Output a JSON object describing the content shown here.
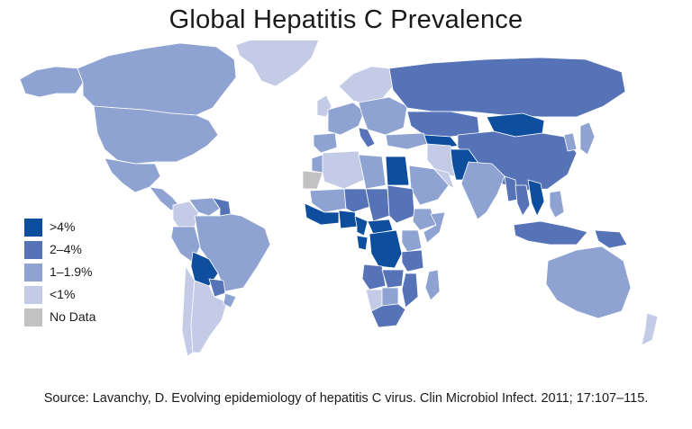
{
  "title": "Global Hepatitis C Prevalence",
  "source": "Source: Lavanchy, D. Evolving epidemiology of hepatitis C virus. Clin Microbiol Infect. 2011; 17:107–115.",
  "colors": {
    "gt4": "#0d4f9e",
    "2to4": "#5773b8",
    "1to19": "#8fa3d3",
    "lt1": "#c3cbe7",
    "nodata": "#c2c2c2",
    "border": "#ffffff"
  },
  "legend": [
    {
      "key": "gt4",
      "label": ">4%"
    },
    {
      "key": "2to4",
      "label": "2–4%"
    },
    {
      "key": "1to19",
      "label": "1–1.9%"
    },
    {
      "key": "lt1",
      "label": "<1%"
    },
    {
      "key": "nodata",
      "label": "No Data"
    }
  ],
  "map_data": {
    "regions": [
      {
        "name": "Canada",
        "category": "1to19"
      },
      {
        "name": "United States",
        "category": "1to19"
      },
      {
        "name": "Alaska",
        "category": "1to19"
      },
      {
        "name": "Greenland",
        "category": "lt1"
      },
      {
        "name": "Mexico",
        "category": "1to19"
      },
      {
        "name": "Central America",
        "category": "1to19"
      },
      {
        "name": "Colombia",
        "category": "lt1"
      },
      {
        "name": "Venezuela",
        "category": "1to19"
      },
      {
        "name": "Guianas",
        "category": "2to4"
      },
      {
        "name": "Brazil",
        "category": "1to19"
      },
      {
        "name": "Peru",
        "category": "1to19"
      },
      {
        "name": "Bolivia",
        "category": "gt4"
      },
      {
        "name": "Paraguay",
        "category": "2to4"
      },
      {
        "name": "Chile",
        "category": "lt1"
      },
      {
        "name": "Argentina",
        "category": "lt1"
      },
      {
        "name": "Uruguay",
        "category": "1to19"
      },
      {
        "name": "Scandinavia",
        "category": "lt1"
      },
      {
        "name": "United Kingdom",
        "category": "lt1"
      },
      {
        "name": "Western Europe",
        "category": "1to19"
      },
      {
        "name": "Iberia",
        "category": "1to19"
      },
      {
        "name": "Italy",
        "category": "2to4"
      },
      {
        "name": "Eastern Europe",
        "category": "1to19"
      },
      {
        "name": "Russia",
        "category": "2to4"
      },
      {
        "name": "Kazakhstan",
        "category": "2to4"
      },
      {
        "name": "Mongolia",
        "category": "gt4"
      },
      {
        "name": "China",
        "category": "2to4"
      },
      {
        "name": "Japan",
        "category": "1to19"
      },
      {
        "name": "Korea",
        "category": "1to19"
      },
      {
        "name": "Uzbekistan",
        "category": "gt4"
      },
      {
        "name": "Iran",
        "category": "lt1"
      },
      {
        "name": "Pakistan",
        "category": "gt4"
      },
      {
        "name": "India",
        "category": "1to19"
      },
      {
        "name": "Myanmar",
        "category": "2to4"
      },
      {
        "name": "Thailand",
        "category": "2to4"
      },
      {
        "name": "Vietnam",
        "category": "gt4"
      },
      {
        "name": "Indonesia",
        "category": "2to4"
      },
      {
        "name": "Philippines",
        "category": "1to19"
      },
      {
        "name": "Papua New Guinea",
        "category": "2to4"
      },
      {
        "name": "Australia",
        "category": "1to19"
      },
      {
        "name": "New Zealand",
        "category": "lt1"
      },
      {
        "name": "Turkey",
        "category": "1to19"
      },
      {
        "name": "Saudi Arabia",
        "category": "1to19"
      },
      {
        "name": "Gulf States",
        "category": "lt1"
      },
      {
        "name": "Egypt",
        "category": "gt4"
      },
      {
        "name": "Morocco",
        "category": "1to19"
      },
      {
        "name": "Western Sahara",
        "category": "nodata"
      },
      {
        "name": "Algeria",
        "category": "lt1"
      },
      {
        "name": "Libya",
        "category": "1to19"
      },
      {
        "name": "Mali",
        "category": "1to19"
      },
      {
        "name": "Niger",
        "category": "2to4"
      },
      {
        "name": "Chad",
        "category": "2to4"
      },
      {
        "name": "Sudan",
        "category": "2to4"
      },
      {
        "name": "Ethiopia",
        "category": "1to19"
      },
      {
        "name": "Somalia",
        "category": "1to19"
      },
      {
        "name": "West Africa Coast",
        "category": "gt4"
      },
      {
        "name": "Nigeria",
        "category": "gt4"
      },
      {
        "name": "Central African Republic",
        "category": "gt4"
      },
      {
        "name": "Cameroon",
        "category": "gt4"
      },
      {
        "name": "Gabon",
        "category": "gt4"
      },
      {
        "name": "DR Congo",
        "category": "gt4"
      },
      {
        "name": "Kenya",
        "category": "1to19"
      },
      {
        "name": "Tanzania",
        "category": "2to4"
      },
      {
        "name": "Angola",
        "category": "2to4"
      },
      {
        "name": "Zambia",
        "category": "2to4"
      },
      {
        "name": "Mozambique",
        "category": "2to4"
      },
      {
        "name": "Namibia",
        "category": "lt1"
      },
      {
        "name": "Botswana",
        "category": "1to19"
      },
      {
        "name": "South Africa",
        "category": "2to4"
      },
      {
        "name": "Madagascar",
        "category": "1to19"
      }
    ]
  }
}
